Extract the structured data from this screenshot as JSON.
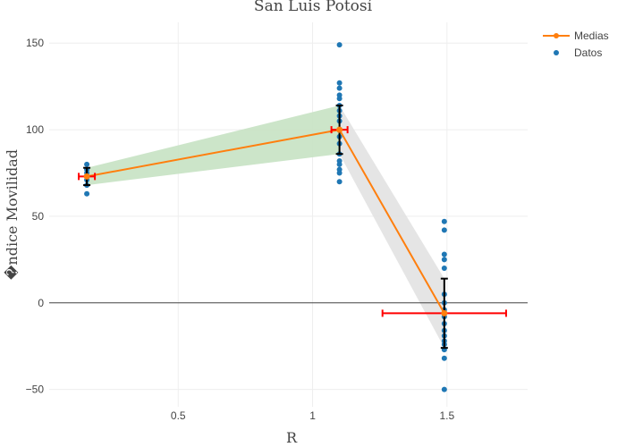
{
  "chart_data": {
    "type": "scatter",
    "title": "San Luis Potosí",
    "xlabel": "R",
    "ylabel": "�ndice Movilidad",
    "xlim": [
      0.02,
      1.8
    ],
    "ylim": [
      -60,
      162
    ],
    "xticks": [
      0.5,
      1,
      1.5
    ],
    "xtick_labels": [
      "0.5",
      "1",
      "1.5"
    ],
    "yticks": [
      -50,
      0,
      50,
      100,
      150
    ],
    "ytick_labels": [
      "−50",
      "0",
      "50",
      "100",
      "150"
    ],
    "grid": true,
    "legend_position": "top-right",
    "series": [
      {
        "name": "Medias",
        "type": "line+markers",
        "color": "#ff7f0e",
        "x": [
          0.16,
          1.1,
          1.49
        ],
        "y": [
          73,
          100,
          -6
        ],
        "x_error": [
          0.03,
          0.03,
          0.23
        ],
        "y_error": [
          5,
          14,
          20
        ],
        "y_band": [
          [
            68,
            78
          ],
          [
            86,
            114
          ],
          [
            -26,
            14
          ]
        ],
        "band_colors": [
          "#c7e2c3",
          "#e2e2e2"
        ]
      },
      {
        "name": "Datos",
        "type": "markers",
        "color": "#1f77b4",
        "x": [
          0.16,
          0.16,
          0.16,
          0.16,
          0.16,
          0.16,
          0.16,
          1.1,
          1.1,
          1.1,
          1.1,
          1.1,
          1.1,
          1.1,
          1.1,
          1.1,
          1.1,
          1.1,
          1.1,
          1.1,
          1.1,
          1.1,
          1.1,
          1.1,
          1.1,
          1.49,
          1.49,
          1.49,
          1.49,
          1.49,
          1.49,
          1.49,
          1.49,
          1.49,
          1.49,
          1.49,
          1.49,
          1.49,
          1.49,
          1.49,
          1.49,
          1.49
        ],
        "y": [
          80,
          77,
          75,
          73,
          71,
          68,
          63,
          149,
          127,
          124,
          120,
          118,
          114,
          111,
          108,
          105,
          100,
          96,
          92,
          86,
          82,
          80,
          77,
          75,
          70,
          47,
          42,
          28,
          25,
          20,
          5,
          0,
          -4,
          -8,
          -12,
          -16,
          -19,
          -22,
          -24,
          -27,
          -32,
          -50
        ]
      }
    ]
  }
}
